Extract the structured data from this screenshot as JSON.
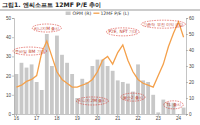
{
  "chart_data": {
    "type": "bar",
    "title": "그림1. 엔씨소프트 12MF P/E 추이",
    "categories": [
      "16",
      null,
      null,
      null,
      "17",
      null,
      null,
      null,
      "18",
      null,
      null,
      null,
      "19",
      null,
      null,
      null,
      "20",
      null,
      null,
      null,
      "21",
      null,
      null,
      null,
      "22",
      null,
      null,
      null,
      "23",
      null,
      null,
      null,
      "24",
      null
    ],
    "series": [
      {
        "name": "OPM (R)",
        "type": "bar",
        "axis": "y2",
        "color": "#c8c8c8",
        "values": [
          25,
          32,
          29,
          31,
          20,
          15,
          50,
          30,
          49,
          37,
          32,
          25,
          10,
          22,
          20,
          30,
          34,
          34,
          30,
          27,
          21,
          20,
          19,
          14,
          31,
          21,
          20,
          12,
          1,
          9,
          7,
          7,
          0,
          4
        ]
      },
      {
        "name": "12MF P/E (L)",
        "type": "line",
        "color": "#f4a04a",
        "values": [
          14,
          15,
          17,
          18,
          20,
          32,
          38,
          30,
          22,
          18,
          16,
          14,
          14,
          15,
          16,
          18,
          22,
          28,
          30,
          26,
          32,
          36,
          28,
          22,
          18,
          16,
          15,
          14,
          20,
          26,
          35,
          42,
          48,
          40
        ]
      }
    ],
    "ylim": [
      0,
      50
    ],
    "yticks": [
      0,
      10,
      20,
      30,
      40,
      50
    ],
    "y2lim": [
      0,
      60
    ],
    "y2ticks": [
      0,
      10,
      20,
      30,
      40,
      50,
      60
    ],
    "legend": "top",
    "annotations": [
      {
        "text": "모바일 BM 기대",
        "x": 1,
        "y": 32
      },
      {
        "text": "리니지M 출시",
        "x": 6,
        "y": 44
      },
      {
        "text": "리니지2M 출시",
        "x": 15,
        "y": 6
      },
      {
        "text": "P2E, NFT 기대",
        "x": 21,
        "y": 42
      },
      {
        "text": "블소2 출시",
        "x": 23,
        "y": 8
      },
      {
        "text": "기존작 부진 이익 급감",
        "x": 29,
        "y": 46
      },
      {
        "text": "TL 출시",
        "x": 31,
        "y": 4
      }
    ]
  }
}
